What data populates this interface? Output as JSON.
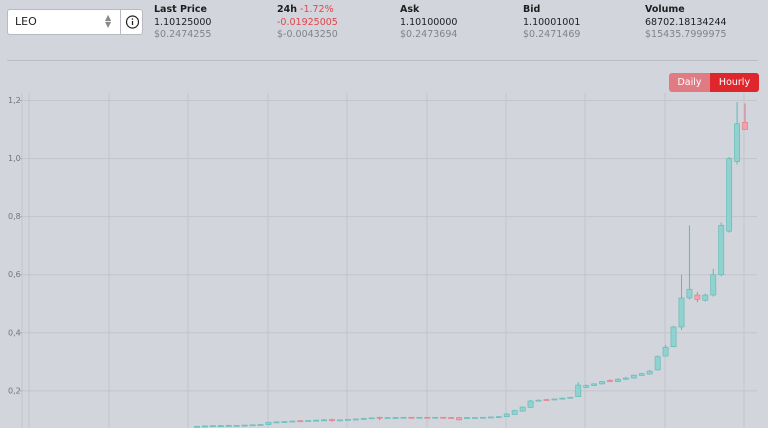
{
  "selector": {
    "value": "LEO"
  },
  "stats": [
    {
      "label": "Last Price",
      "value": "1.10125000",
      "usd": "$0.2474255"
    },
    {
      "label": "24h",
      "change": "-1.72%",
      "value": "-0.01925005",
      "usd": "$-0.0043250"
    },
    {
      "label": "Ask",
      "value": "1.10100000",
      "usd": "$0.2473694"
    },
    {
      "label": "Bid",
      "value": "1.10001001",
      "usd": "$0.2471469"
    },
    {
      "label": "Volume",
      "value": "68702.18134244",
      "usd": "$15435.7999975"
    }
  ],
  "buttons": [
    "Daily",
    "Hourly"
  ],
  "chart_data": {
    "type": "candlestick",
    "open": [
      0.076,
      0.077,
      0.078,
      0.079,
      0.08,
      0.08,
      0.081,
      0.082,
      0.083,
      0.084,
      0.09,
      0.092,
      0.093,
      0.097,
      0.096,
      0.098,
      0.099,
      0.101,
      0.097,
      0.1,
      0.102,
      0.103,
      0.105,
      0.109,
      0.107,
      0.108,
      0.108,
      0.109,
      0.108,
      0.109,
      0.108,
      0.109,
      0.108,
      0.108,
      0.104,
      0.107,
      0.108,
      0.109,
      0.11,
      0.111,
      0.119,
      0.13,
      0.143,
      0.165,
      0.17,
      0.169,
      0.172,
      0.175,
      0.18,
      0.212,
      0.218,
      0.224,
      0.236,
      0.232,
      0.24,
      0.244,
      0.253,
      0.258,
      0.272,
      0.32,
      0.352,
      0.42,
      0.52,
      0.53,
      0.512,
      0.53,
      0.6,
      0.75,
      0.99,
      1.125
    ],
    "high": [
      0.079,
      0.08,
      0.081,
      0.082,
      0.083,
      0.082,
      0.083,
      0.084,
      0.086,
      0.093,
      0.094,
      0.095,
      0.097,
      0.099,
      0.099,
      0.101,
      0.103,
      0.104,
      0.101,
      0.103,
      0.105,
      0.107,
      0.108,
      0.111,
      0.109,
      0.11,
      0.11,
      0.11,
      0.11,
      0.11,
      0.11,
      0.11,
      0.11,
      0.11,
      0.11,
      0.109,
      0.11,
      0.111,
      0.113,
      0.123,
      0.135,
      0.146,
      0.168,
      0.17,
      0.172,
      0.173,
      0.176,
      0.179,
      0.23,
      0.222,
      0.226,
      0.234,
      0.24,
      0.244,
      0.248,
      0.256,
      0.262,
      0.272,
      0.322,
      0.358,
      0.424,
      0.6,
      0.77,
      0.54,
      0.535,
      0.62,
      0.78,
      1.005,
      1.195,
      1.19
    ],
    "low": [
      0.075,
      0.076,
      0.077,
      0.078,
      0.079,
      0.079,
      0.08,
      0.081,
      0.082,
      0.083,
      0.089,
      0.091,
      0.092,
      0.095,
      0.095,
      0.097,
      0.098,
      0.094,
      0.096,
      0.099,
      0.101,
      0.102,
      0.104,
      0.099,
      0.106,
      0.107,
      0.107,
      0.107,
      0.107,
      0.108,
      0.107,
      0.107,
      0.106,
      0.098,
      0.103,
      0.106,
      0.107,
      0.108,
      0.109,
      0.11,
      0.118,
      0.129,
      0.142,
      0.164,
      0.166,
      0.168,
      0.171,
      0.174,
      0.179,
      0.21,
      0.217,
      0.222,
      0.23,
      0.23,
      0.238,
      0.242,
      0.251,
      0.256,
      0.27,
      0.318,
      0.35,
      0.41,
      0.515,
      0.505,
      0.508,
      0.525,
      0.595,
      0.745,
      0.98,
      1.1
    ],
    "close": [
      0.078,
      0.079,
      0.08,
      0.08,
      0.081,
      0.081,
      0.082,
      0.083,
      0.084,
      0.092,
      0.093,
      0.094,
      0.096,
      0.096,
      0.098,
      0.099,
      0.1,
      0.097,
      0.1,
      0.102,
      0.103,
      0.105,
      0.107,
      0.107,
      0.108,
      0.108,
      0.109,
      0.108,
      0.109,
      0.108,
      0.109,
      0.108,
      0.107,
      0.1,
      0.108,
      0.108,
      0.109,
      0.11,
      0.111,
      0.12,
      0.132,
      0.144,
      0.165,
      0.168,
      0.168,
      0.172,
      0.175,
      0.178,
      0.22,
      0.218,
      0.224,
      0.232,
      0.232,
      0.24,
      0.244,
      0.254,
      0.259,
      0.268,
      0.318,
      0.35,
      0.42,
      0.52,
      0.55,
      0.515,
      0.53,
      0.6,
      0.77,
      1.0,
      1.12,
      1.1
    ],
    "ylim": [
      0.072,
      1.226
    ],
    "yticks": [
      {
        "value": 0.2,
        "label": "0,2"
      },
      {
        "value": 0.4,
        "label": "0,4"
      },
      {
        "value": 0.6,
        "label": "0,6"
      },
      {
        "value": 0.8,
        "label": "0,8"
      },
      {
        "value": 1.0,
        "label": "1,0"
      },
      {
        "value": 1.2,
        "label": "1,2"
      }
    ],
    "grid": true,
    "up_color": "#8fd2cf",
    "up_edge": "#5db9b5",
    "down_color": "#f3a2ac",
    "down_edge": "#e27a87"
  }
}
